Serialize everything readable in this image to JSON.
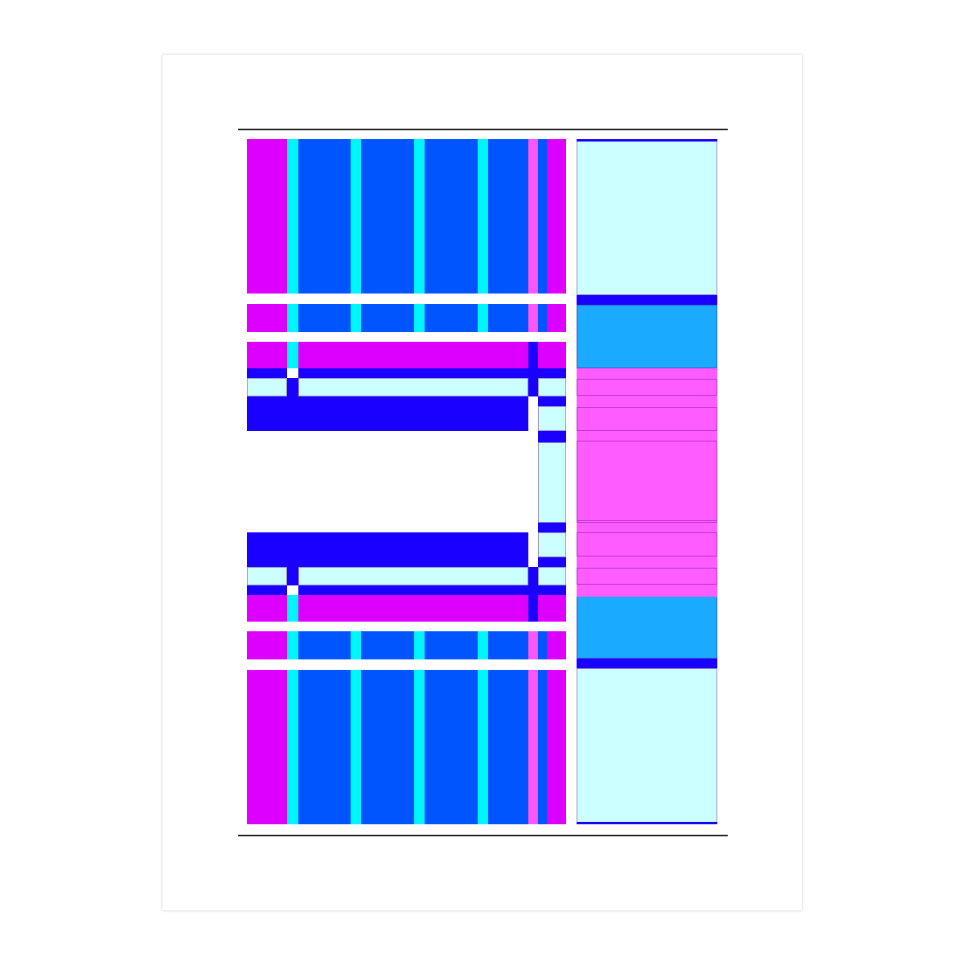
{
  "palette": {
    "magenta": "#dd00ff",
    "cyan": "#00f5ff",
    "blue": "#0055ff",
    "pink": "#ff55ff",
    "deep_blue": "#1a00ff",
    "light_cyan": "#ccffff",
    "sky_blue": "#1aaaff",
    "panel_pink": "#ff5cff",
    "page": "#ffffff",
    "rule": "#222222"
  }
}
